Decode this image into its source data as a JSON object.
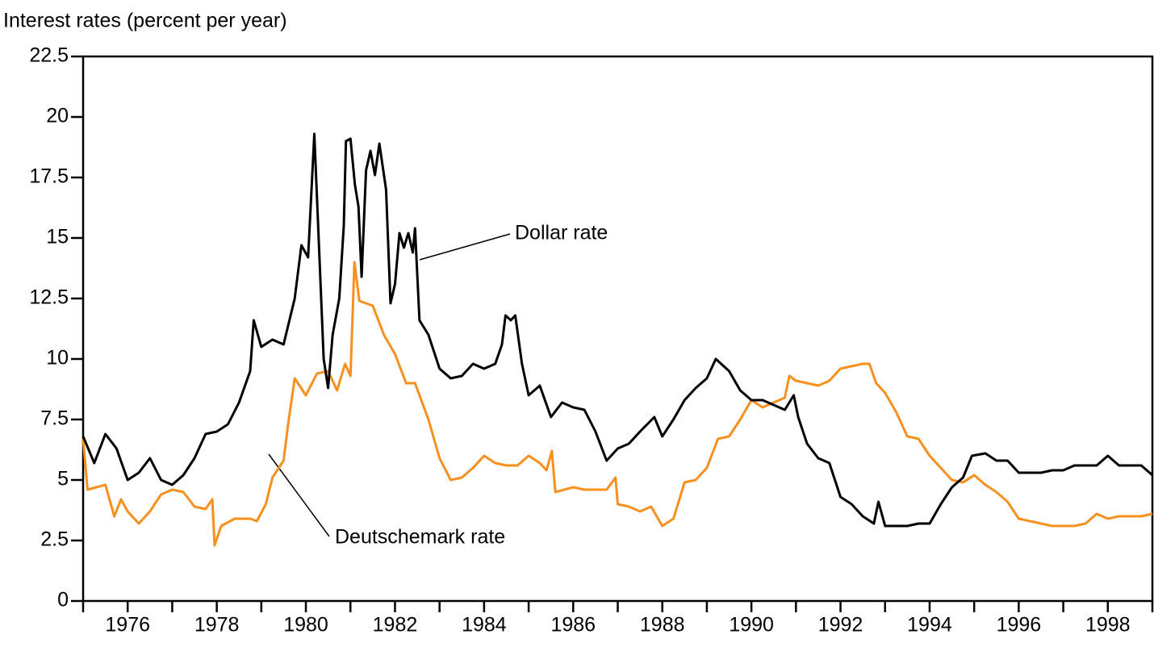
{
  "chart_data": {
    "type": "line",
    "ylabel": "Interest rates (percent per year)",
    "xlim": [
      1975,
      1999
    ],
    "xticks": [
      1976,
      1978,
      1980,
      1982,
      1984,
      1986,
      1988,
      1990,
      1992,
      1994,
      1996,
      1998
    ],
    "xminor_ticks": [
      1975,
      1977,
      1979,
      1981,
      1983,
      1985,
      1987,
      1989,
      1991,
      1993,
      1995,
      1997,
      1999
    ],
    "ylim": [
      0,
      22.5
    ],
    "yticks": [
      0,
      2.5,
      5,
      7.5,
      10,
      12.5,
      15,
      17.5,
      20,
      22.5
    ],
    "grid": false,
    "series": [
      {
        "name": "Dollar rate",
        "color": "#000000",
        "x": [
          1975.0,
          1975.25,
          1975.5,
          1975.75,
          1976.0,
          1976.25,
          1976.5,
          1976.75,
          1977.0,
          1977.25,
          1977.5,
          1977.75,
          1978.0,
          1978.25,
          1978.5,
          1978.75,
          1978.83,
          1979.0,
          1979.25,
          1979.5,
          1979.75,
          1979.9,
          1980.05,
          1980.19,
          1980.4,
          1980.5,
          1980.6,
          1980.75,
          1980.85,
          1980.9,
          1981.0,
          1981.1,
          1981.18,
          1981.25,
          1981.35,
          1981.45,
          1981.55,
          1981.65,
          1981.8,
          1981.9,
          1982.0,
          1982.1,
          1982.2,
          1982.3,
          1982.4,
          1982.45,
          1982.55,
          1982.75,
          1983.0,
          1983.25,
          1983.5,
          1983.75,
          1984.0,
          1984.25,
          1984.4,
          1984.48,
          1984.6,
          1984.7,
          1984.85,
          1985.0,
          1985.25,
          1985.5,
          1985.75,
          1986.0,
          1986.25,
          1986.5,
          1986.75,
          1987.0,
          1987.25,
          1987.5,
          1987.82,
          1988.0,
          1988.25,
          1988.5,
          1988.75,
          1989.0,
          1989.2,
          1989.5,
          1989.75,
          1990.0,
          1990.25,
          1990.5,
          1990.75,
          1990.95,
          1991.05,
          1991.25,
          1991.5,
          1991.75,
          1992.0,
          1992.25,
          1992.5,
          1992.75,
          1992.85,
          1993.0,
          1993.25,
          1993.5,
          1993.75,
          1994.0,
          1994.25,
          1994.5,
          1994.75,
          1994.95,
          1995.25,
          1995.5,
          1995.75,
          1996.0,
          1996.25,
          1996.5,
          1996.75,
          1997.0,
          1997.25,
          1997.5,
          1997.75,
          1998.0,
          1998.25,
          1998.5,
          1998.75,
          1999.0
        ],
        "values": [
          6.8,
          5.7,
          6.9,
          6.3,
          5.0,
          5.3,
          5.9,
          5.0,
          4.8,
          5.2,
          5.9,
          6.9,
          7.0,
          7.3,
          8.2,
          9.5,
          11.6,
          10.5,
          10.8,
          10.6,
          12.5,
          14.7,
          14.2,
          19.3,
          10.0,
          8.8,
          11.0,
          12.5,
          15.5,
          19.0,
          19.1,
          17.2,
          16.3,
          13.4,
          17.8,
          18.6,
          17.6,
          18.9,
          17.0,
          12.3,
          13.1,
          15.2,
          14.6,
          15.2,
          14.4,
          15.4,
          11.6,
          11.0,
          9.6,
          9.2,
          9.3,
          9.8,
          9.6,
          9.8,
          10.6,
          11.8,
          11.6,
          11.8,
          9.8,
          8.5,
          8.9,
          7.6,
          8.2,
          8.0,
          7.9,
          7.0,
          5.8,
          6.3,
          6.5,
          7.0,
          7.6,
          6.8,
          7.5,
          8.3,
          8.8,
          9.2,
          10.0,
          9.5,
          8.7,
          8.3,
          8.3,
          8.1,
          7.9,
          8.5,
          7.6,
          6.5,
          5.9,
          5.7,
          4.3,
          4.0,
          3.5,
          3.2,
          4.1,
          3.1,
          3.1,
          3.1,
          3.2,
          3.2,
          4.0,
          4.7,
          5.1,
          6.0,
          6.1,
          5.8,
          5.8,
          5.3,
          5.3,
          5.3,
          5.4,
          5.4,
          5.6,
          5.6,
          5.6,
          6.0,
          5.6,
          5.6,
          5.6,
          5.2
        ]
      },
      {
        "name": "Deutschemark rate",
        "color": "#f7901e",
        "x": [
          1975.0,
          1975.1,
          1975.5,
          1975.7,
          1975.85,
          1976.0,
          1976.25,
          1976.5,
          1976.75,
          1977.0,
          1977.25,
          1977.5,
          1977.75,
          1977.9,
          1977.95,
          1978.1,
          1978.4,
          1978.75,
          1978.9,
          1979.1,
          1979.25,
          1979.5,
          1979.6,
          1979.75,
          1980.0,
          1980.25,
          1980.5,
          1980.7,
          1980.88,
          1981.0,
          1981.09,
          1981.2,
          1981.5,
          1981.75,
          1982.0,
          1982.25,
          1982.45,
          1982.75,
          1983.0,
          1983.25,
          1983.5,
          1983.75,
          1984.0,
          1984.25,
          1984.5,
          1984.75,
          1985.0,
          1985.25,
          1985.4,
          1985.52,
          1985.6,
          1986.0,
          1986.25,
          1986.5,
          1986.75,
          1986.95,
          1987.0,
          1987.25,
          1987.5,
          1987.75,
          1988.0,
          1988.25,
          1988.5,
          1988.75,
          1989.0,
          1989.25,
          1989.5,
          1989.75,
          1990.0,
          1990.25,
          1990.5,
          1990.75,
          1990.85,
          1991.0,
          1991.25,
          1991.5,
          1991.75,
          1992.0,
          1992.25,
          1992.5,
          1992.65,
          1992.8,
          1993.0,
          1993.25,
          1993.5,
          1993.75,
          1994.0,
          1994.25,
          1994.5,
          1994.75,
          1995.0,
          1995.25,
          1995.5,
          1995.75,
          1996.0,
          1996.25,
          1996.5,
          1996.75,
          1997.0,
          1997.25,
          1997.5,
          1997.75,
          1998.0,
          1998.25,
          1998.5,
          1998.75,
          1999.0
        ],
        "values": [
          6.7,
          4.6,
          4.8,
          3.5,
          4.2,
          3.7,
          3.2,
          3.7,
          4.4,
          4.6,
          4.5,
          3.9,
          3.8,
          4.2,
          2.3,
          3.1,
          3.4,
          3.4,
          3.3,
          4.0,
          5.1,
          5.8,
          7.3,
          9.2,
          8.5,
          9.4,
          9.5,
          8.7,
          9.8,
          9.3,
          14.0,
          12.4,
          12.2,
          11.0,
          10.2,
          9.0,
          9.0,
          7.5,
          5.9,
          5.0,
          5.1,
          5.5,
          6.0,
          5.7,
          5.6,
          5.6,
          6.0,
          5.7,
          5.4,
          6.2,
          4.5,
          4.7,
          4.6,
          4.6,
          4.6,
          5.1,
          4.0,
          3.9,
          3.7,
          3.9,
          3.1,
          3.4,
          4.9,
          5.0,
          5.5,
          6.7,
          6.8,
          7.5,
          8.3,
          8.0,
          8.2,
          8.4,
          9.3,
          9.1,
          9.0,
          8.9,
          9.1,
          9.6,
          9.7,
          9.8,
          9.8,
          9.0,
          8.6,
          7.8,
          6.8,
          6.7,
          6.0,
          5.5,
          5.0,
          4.9,
          5.2,
          4.8,
          4.5,
          4.1,
          3.4,
          3.3,
          3.2,
          3.1,
          3.1,
          3.1,
          3.2,
          3.6,
          3.4,
          3.5,
          3.5,
          3.5,
          3.6
        ]
      }
    ]
  }
}
